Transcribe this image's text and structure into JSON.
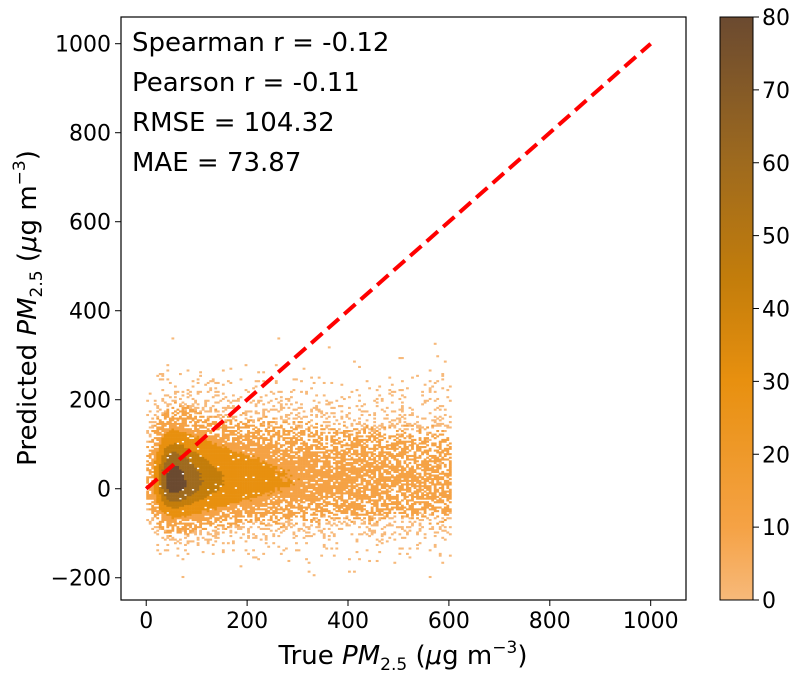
{
  "chart_data": {
    "type": "heatmap",
    "subtype": "2d-histogram-scatter",
    "xlabel": {
      "prefix": "True ",
      "var": "PM",
      "sub": "2.5",
      "units_open": " (",
      "mu": "μ",
      "units_g": "g m",
      "sup": "−3",
      "units_close": ")"
    },
    "ylabel": {
      "prefix": "Predicted ",
      "var": "PM",
      "sub": "2.5",
      "units_open": " (",
      "mu": "μ",
      "units_g": "g m",
      "sup": "−3",
      "units_close": ")"
    },
    "xlim": [
      -50,
      1070
    ],
    "ylim": [
      -250,
      1060
    ],
    "x_ticks": [
      0,
      200,
      400,
      600,
      800,
      1000
    ],
    "y_ticks": [
      -200,
      0,
      200,
      400,
      600,
      800,
      1000
    ],
    "x_tick_labels": [
      "0",
      "200",
      "400",
      "600",
      "800",
      "1000"
    ],
    "y_tick_labels": [
      "−200",
      "0",
      "200",
      "400",
      "600",
      "800",
      "1000"
    ],
    "annotations": [
      "Spearman r = -0.12",
      "Pearson r = -0.11",
      "RMSE = 104.32",
      "MAE = 73.87"
    ],
    "reference_line": {
      "x": [
        0,
        1000
      ],
      "y": [
        0,
        1000
      ],
      "color": "#ff0000",
      "style": "dashed"
    },
    "density_summary": {
      "peak": {
        "x": 50,
        "y": 15,
        "count": 80
      },
      "x_extent": [
        0,
        600
      ],
      "y_extent": [
        -200,
        340
      ],
      "outlier_points": [
        [
          580,
          55
        ],
        [
          505,
          160
        ]
      ]
    },
    "colorbar": {
      "min": 0,
      "max": 80,
      "ticks": [
        0,
        10,
        20,
        30,
        40,
        50,
        60,
        70,
        80
      ],
      "tick_labels": [
        "0",
        "10",
        "20",
        "30",
        "40",
        "50",
        "60",
        "70",
        "80"
      ],
      "colors": [
        "#f7b97a",
        "#f5a245",
        "#e8900f",
        "#c37d0b",
        "#9e6a1e",
        "#6b4a30"
      ]
    }
  }
}
